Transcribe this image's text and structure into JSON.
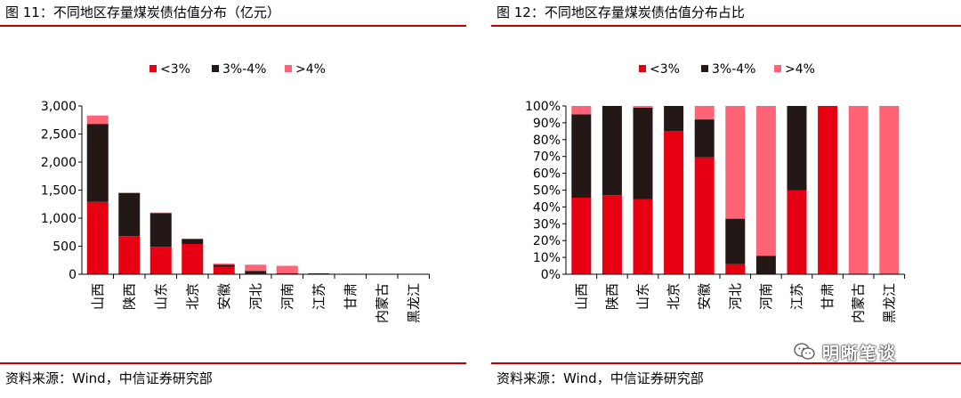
{
  "figures": [
    {
      "title": "图 11：不同地区存量煤炭债估值分布（亿元）",
      "source": "资料来源：Wind，中信证券研究部"
    },
    {
      "title": "图 12：不同地区存量煤炭债估值分布占比",
      "source": "资料来源：Wind，中信证券研究部"
    }
  ],
  "watermark": {
    "icon": "wechat-icon",
    "text": "明晰笔谈"
  },
  "colors": {
    "lt3": "#e60012",
    "3to4": "#231815",
    "gt4": "#ff6376",
    "rule": "#c00000"
  },
  "chart_data": [
    {
      "type": "bar",
      "stacked": true,
      "title": "图 11：不同地区存量煤炭债估值分布（亿元）",
      "categories": [
        "山西",
        "陕西",
        "山东",
        "北京",
        "安徽",
        "河北",
        "河南",
        "江苏",
        "甘肃",
        "内蒙古",
        "黑龙江"
      ],
      "series": [
        {
          "name": "<3%",
          "values": [
            1290,
            680,
            490,
            540,
            130,
            10,
            0,
            5,
            1,
            0,
            0
          ]
        },
        {
          "name": "3%-4%",
          "values": [
            1390,
            770,
            600,
            90,
            40,
            50,
            15,
            10,
            0,
            0,
            0
          ]
        },
        {
          "name": ">4%",
          "values": [
            150,
            0,
            10,
            0,
            20,
            110,
            135,
            0,
            0,
            1,
            1
          ]
        }
      ],
      "ylim": [
        0,
        3000
      ],
      "yticks": [
        "0",
        "500",
        "1,000",
        "1,500",
        "2,000",
        "2,500",
        "3,000"
      ],
      "legend": "top",
      "grid": false
    },
    {
      "type": "bar",
      "stacked": true,
      "percent": true,
      "title": "图 12：不同地区存量煤炭债估值分布占比",
      "categories": [
        "山西",
        "陕西",
        "山东",
        "北京",
        "安徽",
        "河北",
        "河南",
        "江苏",
        "甘肃",
        "内蒙古",
        "黑龙江"
      ],
      "series": [
        {
          "name": "<3%",
          "values": [
            45.5,
            47,
            44.5,
            85,
            69.5,
            6,
            0,
            50,
            100,
            0,
            0
          ]
        },
        {
          "name": "3%-4%",
          "values": [
            49.5,
            53,
            54.5,
            15,
            22.5,
            27,
            11,
            50,
            0,
            0,
            0
          ]
        },
        {
          "name": ">4%",
          "values": [
            5,
            0,
            1,
            0,
            8,
            67,
            89,
            0,
            0,
            100,
            100
          ]
        }
      ],
      "ylim": [
        0,
        100
      ],
      "yticks": [
        "0%",
        "10%",
        "20%",
        "30%",
        "40%",
        "50%",
        "60%",
        "70%",
        "80%",
        "90%",
        "100%"
      ],
      "legend": "top",
      "grid": false
    }
  ]
}
